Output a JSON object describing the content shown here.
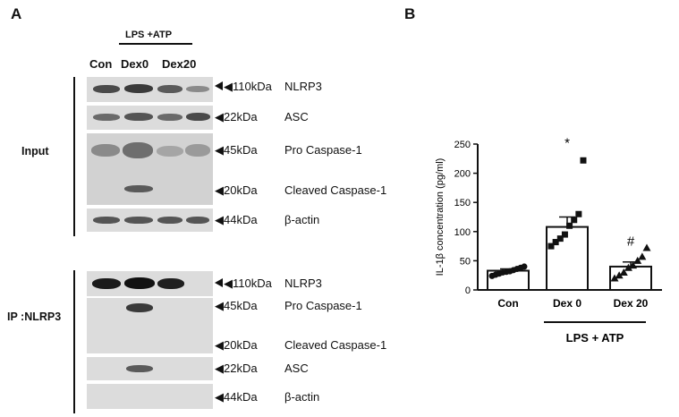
{
  "panels": {
    "a": "A",
    "b": "B"
  },
  "western": {
    "treatment_label": "LPS +ATP",
    "lanes": [
      "Con",
      "Dex0",
      "Dex20"
    ],
    "input_label": "Input",
    "ip_label": "IP :NLRP3",
    "input_markers": [
      {
        "kda": "◀110kDa",
        "protein": "NLRP3"
      },
      {
        "kda": "◀22kDa",
        "protein": "ASC"
      },
      {
        "kda": "◀45kDa",
        "protein": "Pro Caspase-1"
      },
      {
        "kda": "◀20kDa",
        "protein": "Cleaved Caspase-1"
      },
      {
        "kda": "◀44kDa",
        "protein": "β-actin"
      }
    ],
    "ip_markers": [
      {
        "kda": "◀110kDa",
        "protein": "NLRP3"
      },
      {
        "kda": "◀45kDa",
        "protein": "Pro Caspase-1"
      },
      {
        "kda": "◀20kDa",
        "protein": "Cleaved Caspase-1"
      },
      {
        "kda": "◀22kDa",
        "protein": "ASC"
      },
      {
        "kda": "◀44kDa",
        "protein": "β-actin"
      }
    ]
  },
  "chart_data": {
    "type": "bar",
    "ylabel": "IL-1β concentration (pg/ml)",
    "ylim": [
      0,
      250
    ],
    "yticks": [
      0,
      50,
      100,
      150,
      200,
      250
    ],
    "categories": [
      "Con",
      "Dex 0",
      "Dex 20"
    ],
    "values": [
      33,
      108,
      40
    ],
    "sem": [
      3,
      17,
      8
    ],
    "markers": [
      "circle",
      "square",
      "triangle"
    ],
    "points": [
      [
        24,
        26,
        28,
        30,
        31,
        32,
        34,
        36,
        38,
        40
      ],
      [
        75,
        82,
        88,
        95,
        110,
        120,
        130,
        222
      ],
      [
        20,
        25,
        30,
        38,
        42,
        50,
        57,
        72
      ]
    ],
    "annotations": [
      "",
      "*",
      "#"
    ],
    "group_label": "LPS + ATP",
    "grid": false
  }
}
